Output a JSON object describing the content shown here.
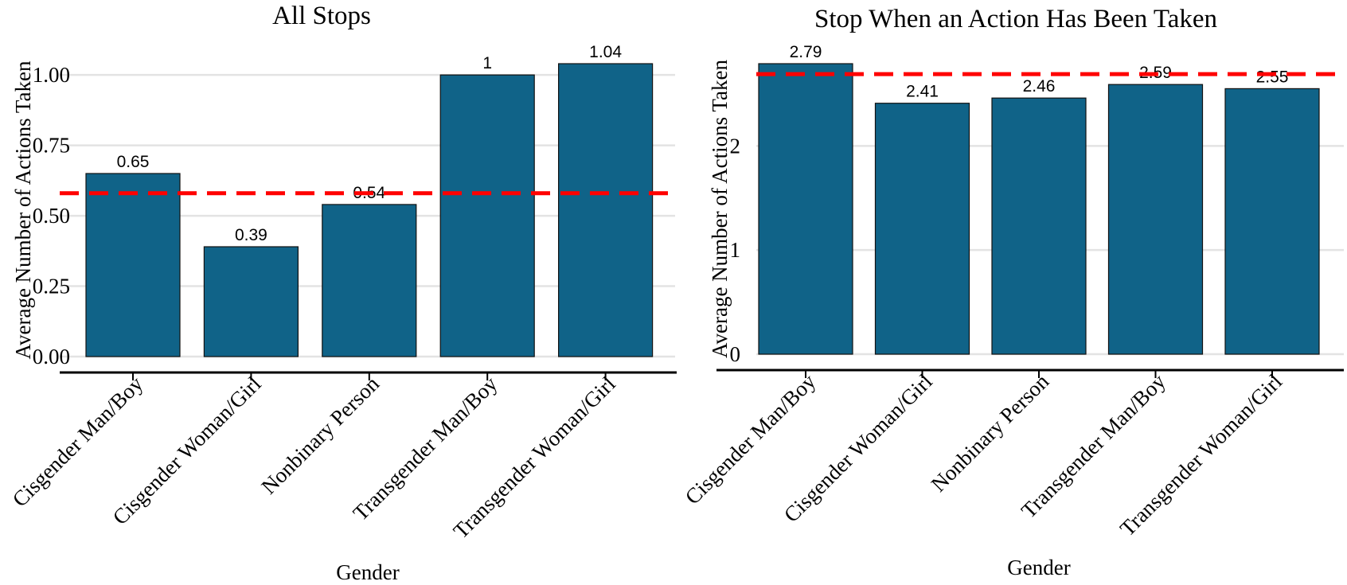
{
  "colors": {
    "bar": "#106388",
    "reference_line": "#ff0000",
    "grid": "#e3e3e3"
  },
  "chart_data": [
    {
      "type": "bar",
      "title": "All Stops",
      "xlabel": "Gender",
      "ylabel": "Average Number of Actions Taken",
      "categories": [
        "Cisgender Man/Boy",
        "Cisgender Woman/Girl",
        "Nonbinary Person",
        "Transgender Man/Boy",
        "Transgender Woman/Girl"
      ],
      "values": [
        0.65,
        0.39,
        0.54,
        1.0,
        1.04
      ],
      "data_labels": [
        "0.65",
        "0.39",
        "0.54",
        "1",
        "1.04"
      ],
      "yticks": [
        0,
        0.25,
        0.5,
        0.75,
        1.0
      ],
      "ytick_labels": [
        "0.00",
        "0.25",
        "0.50",
        "0.75",
        "1.00"
      ],
      "ylim": [
        0,
        1.04
      ],
      "reference_line": {
        "value": 0.58,
        "style": "dashed"
      },
      "grid": "horizontal"
    },
    {
      "type": "bar",
      "title": "Stop When an Action Has Been Taken",
      "xlabel": "Gender",
      "ylabel": "Average Number of Actions Taken",
      "categories": [
        "Cisgender Man/Boy",
        "Cisgender Woman/Girl",
        "Nonbinary Person",
        "Transgender Man/Boy",
        "Transgender Woman/Girl"
      ],
      "values": [
        2.79,
        2.41,
        2.46,
        2.59,
        2.55
      ],
      "data_labels": [
        "2.79",
        "2.41",
        "2.46",
        "2.59",
        "2.55"
      ],
      "yticks": [
        0,
        1,
        2
      ],
      "ytick_labels": [
        "0",
        "1",
        "2"
      ],
      "ylim": [
        0,
        2.79
      ],
      "reference_line": {
        "value": 2.69,
        "style": "dashed"
      },
      "grid": "horizontal"
    }
  ]
}
